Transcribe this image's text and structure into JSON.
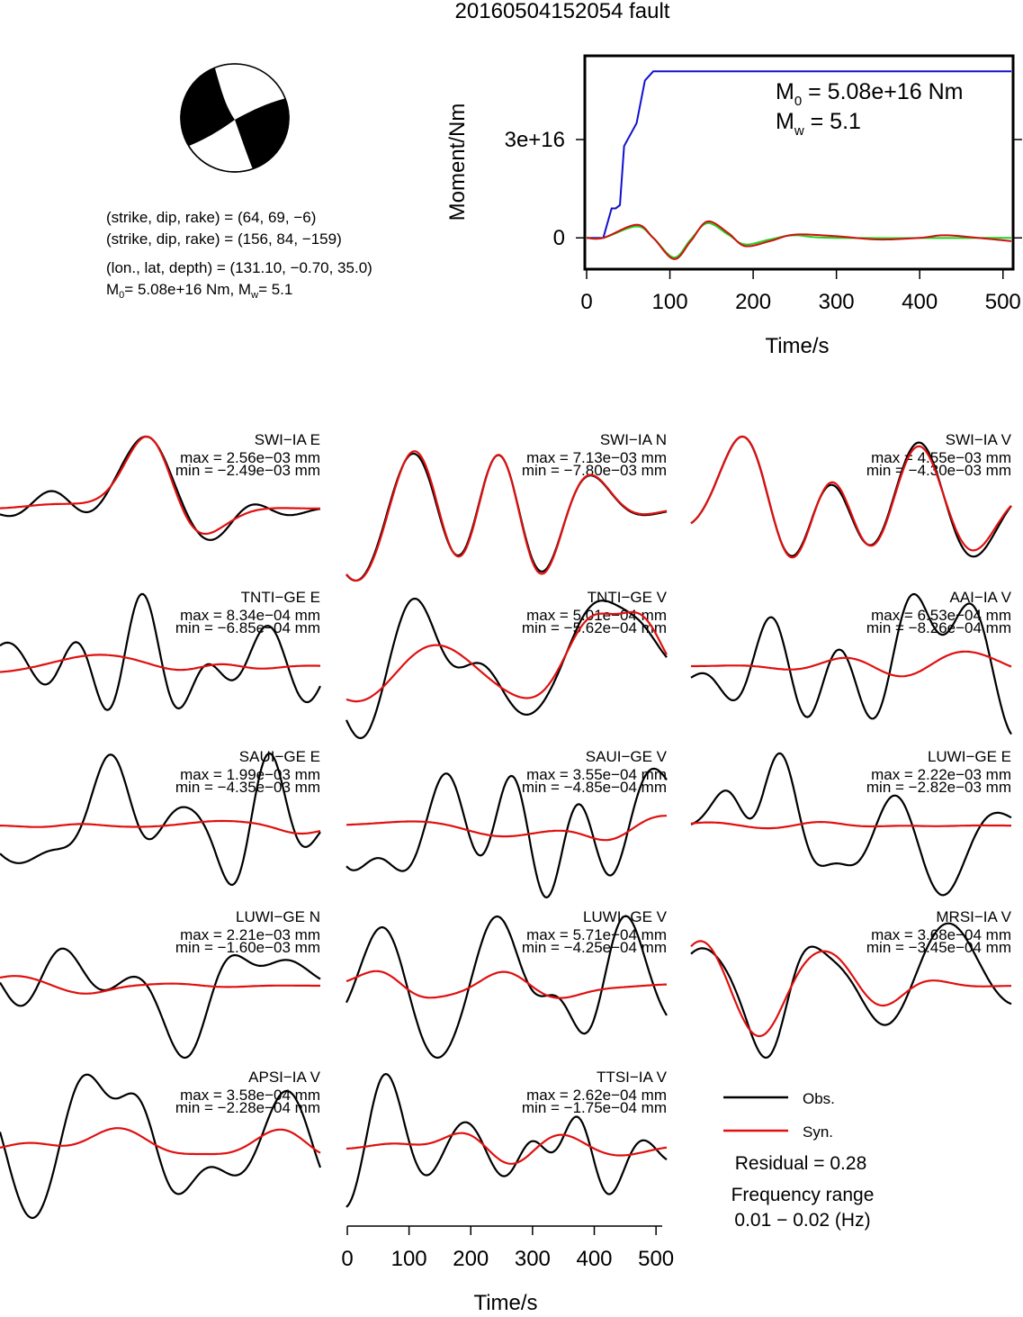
{
  "title": "20160504152054 fault",
  "info": {
    "line1": "(strike, dip, rake) = (64, 69, −6)",
    "line2": "(strike, dip, rake) = (156, 84, −159)",
    "line3": "(lon., lat, depth) = (131.10, −0.70, 35.0)",
    "m0_text": "= 5.08e+16 Nm, M",
    "mw_text": "= 5.1",
    "m0_sym": "M",
    "m0_sub": "0",
    "mw_sub": "w"
  },
  "moment_panel": {
    "ylabel": "Moment/Nm",
    "xlabel": "Time/s",
    "m0_sym": "M",
    "m0_sub": "0",
    "m0_text": " = 5.08e+16 Nm",
    "mw_sym": "M",
    "mw_sub": "w",
    "mw_text": " = 5.1",
    "yticks": [
      "0",
      "3e+16"
    ],
    "xticks": [
      "0",
      "100",
      "200",
      "300",
      "400",
      "500"
    ]
  },
  "traces_xlabel": "Time/s",
  "traces_xticks": [
    "0",
    "100",
    "200",
    "300",
    "400",
    "500"
  ],
  "legend": {
    "obs": "Obs.",
    "syn": "Syn.",
    "residual": "Residual = 0.28",
    "freq_label": "Frequency range",
    "freq_value": "0.01 − 0.02 (Hz)"
  },
  "colors": {
    "obs": "#000000",
    "syn": "#e01010",
    "moment_cumulative": "#1010d0",
    "moment_rate_green": "#20d020",
    "moment_rate_red": "#d01010"
  },
  "chart_data": [
    {
      "type": "line",
      "title": "",
      "xlabel": "Time/s",
      "ylabel": "Moment/Nm",
      "xlim": [
        0,
        510
      ],
      "ylim": [
        -9000000000000000.0,
        5.5e+16
      ],
      "series": [
        {
          "values": [
            [
              0,
              0
            ],
            [
              20,
              0
            ],
            [
              30,
              9000000000000000.0
            ],
            [
              35,
              9000000000000000.0
            ],
            [
              40,
              1e+16
            ],
            [
              45,
              2.8e+16
            ],
            [
              60,
              3.5e+16
            ],
            [
              70,
              4.8e+16
            ],
            [
              80,
              5.08e+16
            ],
            [
              510,
              5.08e+16
            ]
          ]
        },
        {
          "values": [
            [
              0,
              0
            ],
            [
              20,
              0
            ],
            [
              60,
              3500000000000000.0
            ],
            [
              80,
              0
            ],
            [
              105,
              -6000000000000000.0
            ],
            [
              125,
              -500000000000000.0
            ],
            [
              145,
              4500000000000000.0
            ],
            [
              170,
              1000000000000000.0
            ],
            [
              190,
              -2000000000000000.0
            ],
            [
              220,
              -500000000000000.0
            ],
            [
              250,
              800000000000000.0
            ],
            [
              300,
              0
            ],
            [
              510,
              0
            ]
          ]
        },
        {
          "values": [
            [
              0,
              0
            ],
            [
              20,
              0
            ],
            [
              60,
              4000000000000000.0
            ],
            [
              80,
              0
            ],
            [
              105,
              -6500000000000000.0
            ],
            [
              125,
              -1000000000000000.0
            ],
            [
              145,
              5000000000000000.0
            ],
            [
              170,
              1500000000000000.0
            ],
            [
              190,
              -2500000000000000.0
            ],
            [
              220,
              -1000000000000000.0
            ],
            [
              250,
              1000000000000000.0
            ],
            [
              300,
              500000000000000.0
            ],
            [
              350,
              -500000000000000.0
            ],
            [
              400,
              0
            ],
            [
              430,
              800000000000000.0
            ],
            [
              470,
              0
            ],
            [
              510,
              -1000000000000000.0
            ]
          ]
        }
      ]
    },
    {
      "type": "line",
      "xlabel": "Time/s",
      "xlim": [
        0,
        510
      ],
      "series": [
        {
          "name": "Obs."
        },
        {
          "name": "Syn."
        }
      ],
      "stations": [
        {
          "label": "SWI−IA E",
          "max": "max = 2.56e−03 mm",
          "min": "min = −2.49e−03 mm",
          "sq": 0.95,
          "obs_noise": 0.15,
          "seed": 1
        },
        {
          "label": "SWI−IA N",
          "max": "max = 7.13e−03 mm",
          "min": "min = −7.80e−03 mm",
          "sq": 0.98,
          "obs_noise": 0.05,
          "seed": 2
        },
        {
          "label": "SWI−IA V",
          "max": "max = 4.55e−03 mm",
          "min": "min = −4.30e−03 mm",
          "sq": 0.95,
          "obs_noise": 0.08,
          "seed": 3
        },
        {
          "label": "TNTI−GE E",
          "max": "max = 8.34e−04 mm",
          "min": "min = −6.85e−04 mm",
          "sq": 0.2,
          "obs_noise": 1.0,
          "seed": 4
        },
        {
          "label": "TNTI−GE V",
          "max": "max = 5.01e−04 mm",
          "min": "min = −5.62e−04 mm",
          "sq": 0.6,
          "obs_noise": 0.6,
          "seed": 5
        },
        {
          "label": "AAI−IA V",
          "max": "max = 6.53e−04 mm",
          "min": "min = −8.26e−04 mm",
          "sq": 0.3,
          "obs_noise": 0.8,
          "seed": 6
        },
        {
          "label": "SAUI−GE E",
          "max": "max = 1.99e−03 mm",
          "min": "min = −4.35e−03 mm",
          "sq": 0.1,
          "obs_noise": 1.0,
          "seed": 7
        },
        {
          "label": "SAUI−GE V",
          "max": "max = 3.55e−04 mm",
          "min": "min = −4.85e−04 mm",
          "sq": 0.3,
          "obs_noise": 0.9,
          "seed": 8
        },
        {
          "label": "LUWI−GE E",
          "max": "max = 2.22e−03 mm",
          "min": "min = −2.82e−03 mm",
          "sq": 0.03,
          "obs_noise": 1.0,
          "seed": 9
        },
        {
          "label": "LUWI−GE N",
          "max": "max = 2.21e−03 mm",
          "min": "min = −1.60e−03 mm",
          "sq": 0.15,
          "obs_noise": 1.0,
          "seed": 10
        },
        {
          "label": "LUWI−GE V",
          "max": "max = 5.71e−04 mm",
          "min": "min = −4.25e−04 mm",
          "sq": 0.3,
          "obs_noise": 0.8,
          "seed": 11
        },
        {
          "label": "MRSI−IA V",
          "max": "max = 3.68e−04 mm",
          "min": "min = −3.45e−04 mm",
          "sq": 0.55,
          "obs_noise": 0.8,
          "seed": 12
        },
        {
          "label": "APSI−IA V",
          "max": "max = 3.58e−04 mm",
          "min": "min = −2.28e−04 mm",
          "sq": 0.4,
          "obs_noise": 0.8,
          "seed": 13
        },
        {
          "label": "TTSI−IA V",
          "max": "max = 2.62e−04 mm",
          "min": "min = −1.75e−04 mm",
          "sq": 0.4,
          "obs_noise": 0.8,
          "seed": 14
        }
      ]
    }
  ]
}
